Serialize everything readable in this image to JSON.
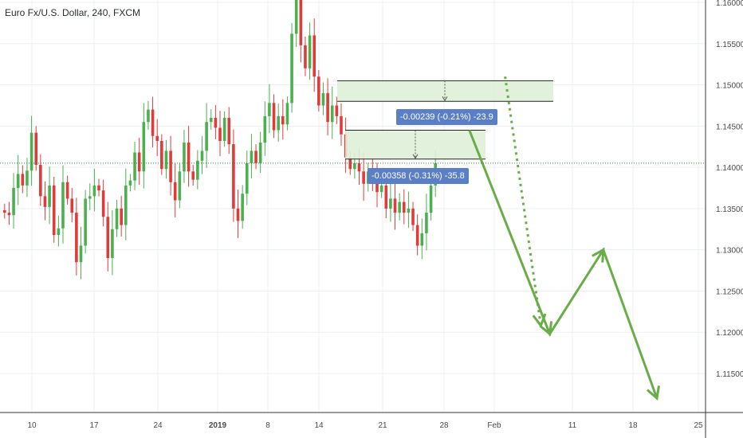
{
  "header": {
    "title": "Euro Fx/U.S. Dollar, 240, FXCM"
  },
  "measurements": [
    {
      "label": "-0.00239 (-0.21%) -23.9"
    },
    {
      "label": "-0.00358 (-0.31%) -35.8"
    }
  ],
  "colors": {
    "up": "#4caf50",
    "down": "#e03b3b",
    "forecast": "#6aac47",
    "box_fill": "#dff0d8",
    "label_bg": "#5b7fc4",
    "price_line": "#2e8b3a"
  },
  "chart_data": {
    "type": "candlestick",
    "title": "Euro Fx/U.S. Dollar, 240, FXCM",
    "ylim": [
      1.1105,
      1.1605
    ],
    "y_ticks": [
      {
        "value": 1.16,
        "label": "1.16000"
      },
      {
        "value": 1.155,
        "label": "1.15500"
      },
      {
        "value": 1.15,
        "label": "1.15000"
      },
      {
        "value": 1.145,
        "label": "1.14500"
      },
      {
        "value": 1.14,
        "label": "1.14000"
      },
      {
        "value": 1.135,
        "label": "1.13500"
      },
      {
        "value": 1.13,
        "label": "1.13000"
      },
      {
        "value": 1.125,
        "label": "1.12500"
      },
      {
        "value": 1.12,
        "label": "1.12000"
      },
      {
        "value": 1.115,
        "label": "1.11500"
      }
    ],
    "x_ticks": [
      "10",
      "17",
      "24",
      "2019",
      "8",
      "14",
      "21",
      "28",
      "Feb",
      "11",
      "18",
      "25"
    ],
    "current_price": 1.1405,
    "price_path": [
      1.1348,
      1.1345,
      1.1342,
      1.1375,
      1.1392,
      1.1378,
      1.1396,
      1.1442,
      1.1403,
      1.1365,
      1.1352,
      1.1378,
      1.1318,
      1.1326,
      1.1382,
      1.1362,
      1.1345,
      1.1285,
      1.1305,
      1.1362,
      1.1365,
      1.1378,
      1.1372,
      1.134,
      1.129,
      1.1325,
      1.135,
      1.133,
      1.1378,
      1.1384,
      1.1418,
      1.1395,
      1.1455,
      1.147,
      1.1438,
      1.1432,
      1.1398,
      1.142,
      1.1382,
      1.136,
      1.1395,
      1.143,
      1.1395,
      1.1385,
      1.1408,
      1.142,
      1.1455,
      1.146,
      1.1448,
      1.1432,
      1.146,
      1.1428,
      1.135,
      1.1335,
      1.1368,
      1.1405,
      1.142,
      1.1405,
      1.143,
      1.1462,
      1.1478,
      1.1445,
      1.1462,
      1.1452,
      1.1478,
      1.1562,
      1.1605,
      1.1548,
      1.152,
      1.156,
      1.151,
      1.1475,
      1.149,
      1.1455,
      1.1475,
      1.1462,
      1.144,
      1.1412,
      1.1398,
      1.1405,
      1.1395,
      1.138,
      1.1395,
      1.1385,
      1.137,
      1.1378,
      1.135,
      1.1362,
      1.1345,
      1.1358,
      1.1345,
      1.135,
      1.133,
      1.1305,
      1.132,
      1.1345,
      1.1378,
      1.1405
    ],
    "forecast_paths": [
      {
        "style": "solid",
        "points": [
          {
            "date": "2019-01-28",
            "value": 1.1445
          },
          {
            "date": "2019-02-06",
            "value": 1.1198
          },
          {
            "date": "2019-02-12",
            "value": 1.13
          },
          {
            "date": "2019-02-18",
            "value": 1.112
          }
        ]
      },
      {
        "style": "dotted",
        "points": [
          {
            "date": "2019-02-01",
            "value": 1.151
          },
          {
            "date": "2019-02-05",
            "value": 1.1208
          }
        ]
      }
    ],
    "boxes": [
      {
        "top": 1.1505,
        "bottom": 1.148,
        "measure": "-0.00239 (-0.21%) -23.9"
      },
      {
        "top": 1.1445,
        "bottom": 1.141,
        "measure": "-0.00358 (-0.31%) -35.8"
      }
    ]
  }
}
